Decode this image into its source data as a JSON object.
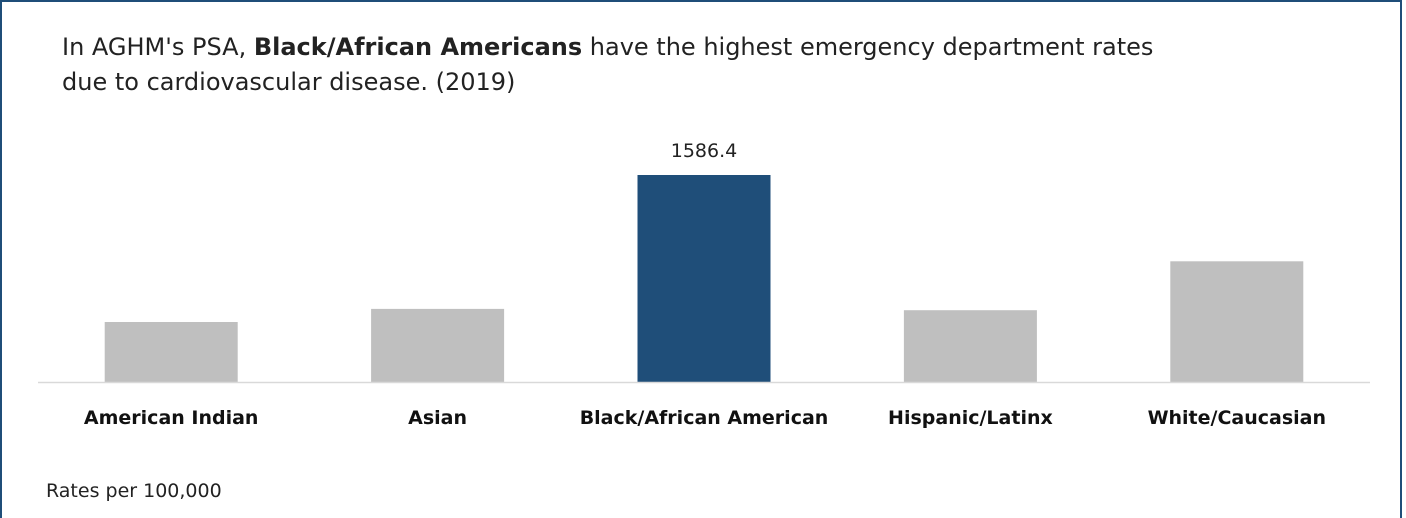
{
  "title": {
    "prefix": "In AGHM's PSA, ",
    "bold": "Black/African Americans",
    "suffix": " have the highest emergency department rates due to cardiovascular disease. (2019)"
  },
  "footnote": "Rates per 100,000",
  "chart_data": {
    "type": "bar",
    "title": "In AGHM's PSA, Black/African Americans have the highest emergency department rates due to cardiovascular disease. (2019)",
    "categories": [
      "American Indian",
      "Asian",
      "Black/African American",
      "Hispanic/Latinx",
      "White/Caucasian"
    ],
    "values": [
      460,
      560,
      1586.4,
      550,
      925
    ],
    "data_labels": [
      "",
      "",
      "1586.4",
      "",
      ""
    ],
    "highlight_index": 2,
    "colors": {
      "default": "#bfbfbf",
      "highlight": "#1f4e79",
      "axis": "#d9d9d9"
    },
    "ylim": [
      0,
      1586.4
    ],
    "xlabel": "",
    "ylabel": "",
    "grid": false,
    "legend": "none",
    "note": "Rates per 100,000"
  }
}
